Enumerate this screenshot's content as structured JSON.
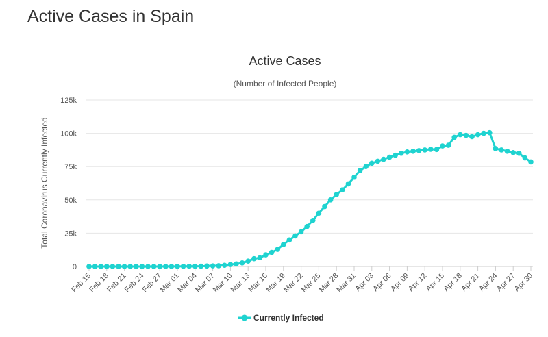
{
  "page": {
    "title": "Active Cases in Spain"
  },
  "colors": {
    "series": "#1fd3d0",
    "grid": "#e6e6e6",
    "axis": "#cccccc"
  },
  "chart_data": {
    "type": "line",
    "title": "Active Cases",
    "subtitle": "(Number of Infected People)",
    "ylabel": "Total Coronavirus Currently Infected",
    "xlabel": "",
    "ylim": [
      0,
      125000
    ],
    "yticks": [
      0,
      25000,
      50000,
      75000,
      100000,
      125000
    ],
    "ytick_labels": [
      "0",
      "25k",
      "50k",
      "75k",
      "100k",
      "125k"
    ],
    "grid": true,
    "legend": "bottom-center",
    "xtick_labels": [
      "Feb 15",
      "Feb 18",
      "Feb 21",
      "Feb 24",
      "Feb 27",
      "Mar 01",
      "Mar 04",
      "Mar 07",
      "Mar 10",
      "Mar 13",
      "Mar 16",
      "Mar 19",
      "Mar 22",
      "Mar 25",
      "Mar 28",
      "Mar 31",
      "Apr 03",
      "Apr 06",
      "Apr 09",
      "Apr 12",
      "Apr 15",
      "Apr 18",
      "Apr 21",
      "Apr 24",
      "Apr 27",
      "Apr 30"
    ],
    "x": [
      "Feb 15",
      "Feb 16",
      "Feb 17",
      "Feb 18",
      "Feb 19",
      "Feb 20",
      "Feb 21",
      "Feb 22",
      "Feb 23",
      "Feb 24",
      "Feb 25",
      "Feb 26",
      "Feb 27",
      "Feb 28",
      "Feb 29",
      "Mar 01",
      "Mar 02",
      "Mar 03",
      "Mar 04",
      "Mar 05",
      "Mar 06",
      "Mar 07",
      "Mar 08",
      "Mar 09",
      "Mar 10",
      "Mar 11",
      "Mar 12",
      "Mar 13",
      "Mar 14",
      "Mar 15",
      "Mar 16",
      "Mar 17",
      "Mar 18",
      "Mar 19",
      "Mar 20",
      "Mar 21",
      "Mar 22",
      "Mar 23",
      "Mar 24",
      "Mar 25",
      "Mar 26",
      "Mar 27",
      "Mar 28",
      "Mar 29",
      "Mar 30",
      "Mar 31",
      "Apr 01",
      "Apr 02",
      "Apr 03",
      "Apr 04",
      "Apr 05",
      "Apr 06",
      "Apr 07",
      "Apr 08",
      "Apr 09",
      "Apr 10",
      "Apr 11",
      "Apr 12",
      "Apr 13",
      "Apr 14",
      "Apr 15",
      "Apr 16",
      "Apr 17",
      "Apr 18",
      "Apr 19",
      "Apr 20",
      "Apr 21",
      "Apr 22",
      "Apr 23",
      "Apr 24",
      "Apr 25",
      "Apr 26",
      "Apr 27",
      "Apr 28",
      "Apr 29",
      "Apr 30"
    ],
    "series": [
      {
        "name": "Currently Infected",
        "values": [
          2,
          2,
          2,
          2,
          2,
          2,
          2,
          2,
          2,
          2,
          10,
          15,
          20,
          30,
          40,
          70,
          100,
          130,
          180,
          230,
          330,
          450,
          560,
          900,
          1500,
          1900,
          2700,
          4000,
          5800,
          6500,
          8700,
          10500,
          12800,
          16500,
          19900,
          22900,
          26000,
          30000,
          34600,
          40000,
          45000,
          50000,
          54000,
          57500,
          62000,
          67000,
          72000,
          75000,
          77500,
          79000,
          80500,
          82000,
          83500,
          85000,
          86000,
          86500,
          87000,
          87500,
          88000,
          87800,
          90500,
          91000,
          97000,
          99000,
          98500,
          97500,
          99000,
          100000,
          100500,
          88500,
          87500,
          86500,
          85500,
          85000,
          81500,
          78500
        ]
      }
    ]
  }
}
